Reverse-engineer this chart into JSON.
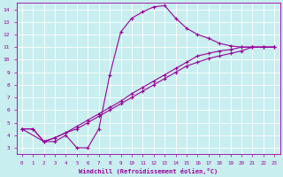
{
  "xlabel": "Windchill (Refroidissement éolien,°C)",
  "background_color": "#c8eef0",
  "line_color": "#990099",
  "grid_color": "#ffffff",
  "xlim": [
    -0.5,
    23.5
  ],
  "ylim": [
    2.5,
    14.5
  ],
  "xticks": [
    0,
    1,
    2,
    3,
    4,
    5,
    6,
    7,
    8,
    9,
    10,
    11,
    12,
    13,
    14,
    15,
    16,
    17,
    18,
    19,
    20,
    21,
    22,
    23
  ],
  "yticks": [
    3,
    4,
    5,
    6,
    7,
    8,
    9,
    10,
    11,
    12,
    13,
    14
  ],
  "series": [
    {
      "x": [
        0,
        1,
        2,
        3,
        4,
        5,
        6,
        7,
        8,
        9,
        10,
        11,
        12,
        13,
        14,
        15,
        16,
        17,
        18,
        19,
        20,
        21,
        22,
        23
      ],
      "y": [
        4.5,
        4.5,
        3.5,
        3.5,
        4.0,
        3.0,
        3.0,
        4.5,
        8.8,
        12.2,
        13.3,
        13.8,
        14.2,
        14.3,
        13.3,
        12.5,
        12.0,
        11.7,
        11.3,
        11.1,
        11.0,
        11.0,
        11.0,
        11.0
      ]
    },
    {
      "x": [
        0,
        1,
        2,
        3,
        4,
        5,
        6,
        7,
        8,
        9,
        10,
        11,
        12,
        13,
        14,
        15,
        16,
        17,
        18,
        19,
        20,
        21,
        22,
        23
      ],
      "y": [
        4.5,
        4.5,
        3.5,
        3.8,
        4.2,
        4.7,
        5.2,
        5.7,
        6.2,
        6.7,
        7.3,
        7.8,
        8.3,
        8.8,
        9.3,
        9.8,
        10.3,
        10.5,
        10.7,
        10.8,
        11.0,
        11.0,
        11.0,
        11.0
      ]
    },
    {
      "x": [
        0,
        2,
        3,
        4,
        5,
        6,
        7,
        8,
        9,
        10,
        11,
        12,
        13,
        14,
        15,
        16,
        17,
        18,
        19,
        20,
        21,
        22,
        23
      ],
      "y": [
        4.5,
        3.5,
        3.8,
        4.2,
        4.5,
        5.0,
        5.5,
        6.0,
        6.5,
        7.0,
        7.5,
        8.0,
        8.5,
        9.0,
        9.5,
        9.8,
        10.1,
        10.3,
        10.5,
        10.7,
        11.0,
        11.0,
        11.0
      ]
    }
  ]
}
